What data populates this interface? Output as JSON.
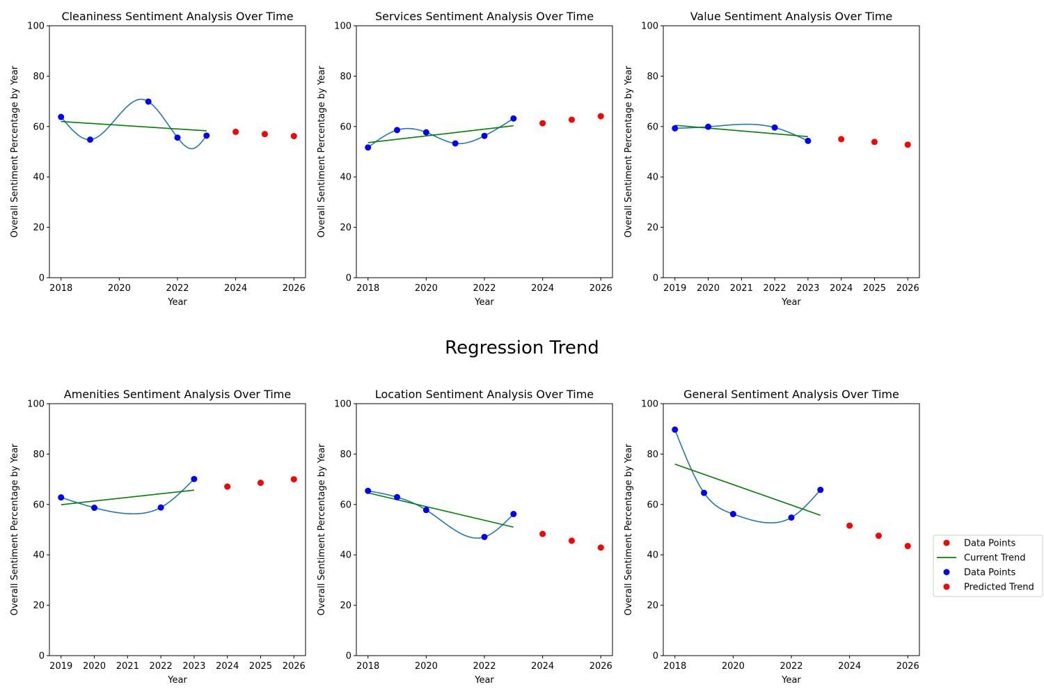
{
  "figure": {
    "suptitle": "Regression Trend",
    "legend": {
      "placement": "right",
      "entries": [
        {
          "label": "Data Points",
          "kind": "dot",
          "color": "#ff0000"
        },
        {
          "label": "Current Trend",
          "kind": "line",
          "color": "#008000"
        },
        {
          "label": "Data Points",
          "kind": "dot",
          "color": "#0000ff"
        },
        {
          "label": "Predicted Trend",
          "kind": "dot",
          "color": "#ff0000"
        }
      ]
    },
    "colors": {
      "actual": "#0000ff",
      "predicted": "#ff0000",
      "trend": "#008000",
      "smooth": "#1f77b4"
    }
  },
  "chart_data": [
    {
      "type": "scatter",
      "title": "Cleaniness Sentiment Analysis Over Time",
      "xlabel": "Year",
      "ylabel": "Overall Sentiment Percentage by Year",
      "xlim": [
        2017.6,
        2026.4
      ],
      "ylim": [
        0,
        100
      ],
      "xticks": [
        2018,
        2020,
        2022,
        2024,
        2026
      ],
      "yticks": [
        0,
        20,
        40,
        60,
        80,
        100
      ],
      "actual": {
        "x": [
          2018,
          2019,
          2021,
          2022,
          2023
        ],
        "y": [
          63.8,
          54.8,
          69.9,
          55.6,
          56.4
        ]
      },
      "smooth_peak": {
        "x": 2020.8,
        "y": 70.8
      },
      "smooth_trough": {
        "x": 2022.55,
        "y": 51.3
      },
      "trend": {
        "x": [
          2018,
          2023
        ],
        "y": [
          62.0,
          58.3
        ]
      },
      "predicted": {
        "x": [
          2024,
          2025,
          2026
        ],
        "y": [
          57.9,
          57.0,
          56.2
        ]
      }
    },
    {
      "type": "scatter",
      "title": "Services Sentiment Analysis Over Time",
      "xlabel": "Year",
      "ylabel": "Overall Sentiment Percentage by Year",
      "xlim": [
        2017.6,
        2026.4
      ],
      "ylim": [
        0,
        100
      ],
      "xticks": [
        2018,
        2020,
        2022,
        2024,
        2026
      ],
      "yticks": [
        0,
        20,
        40,
        60,
        80,
        100
      ],
      "actual": {
        "x": [
          2018,
          2019,
          2020,
          2021,
          2022,
          2023
        ],
        "y": [
          51.7,
          58.6,
          57.7,
          53.3,
          56.3,
          63.2
        ]
      },
      "trend": {
        "x": [
          2018,
          2023
        ],
        "y": [
          53.6,
          60.3
        ]
      },
      "predicted": {
        "x": [
          2024,
          2025,
          2026
        ],
        "y": [
          61.3,
          62.7,
          64.1
        ]
      }
    },
    {
      "type": "scatter",
      "title": "Value Sentiment Analysis Over Time",
      "xlabel": "Year",
      "ylabel": "Overall Sentiment Percentage by Year",
      "xlim": [
        2018.65,
        2026.35
      ],
      "ylim": [
        0,
        100
      ],
      "xticks": [
        2019,
        2020,
        2021,
        2022,
        2023,
        2024,
        2025,
        2026
      ],
      "yticks": [
        0,
        20,
        40,
        60,
        80,
        100
      ],
      "actual": {
        "x": [
          2019,
          2020,
          2022,
          2023
        ],
        "y": [
          59.3,
          59.9,
          59.6,
          54.3
        ]
      },
      "smooth_peak": {
        "x": 2021.1,
        "y": 60.9
      },
      "trend": {
        "x": [
          2019,
          2023
        ],
        "y": [
          60.5,
          56.0
        ]
      },
      "predicted": {
        "x": [
          2024,
          2025,
          2026
        ],
        "y": [
          55.0,
          53.9,
          52.8
        ]
      }
    },
    {
      "type": "scatter",
      "title": "Amenities Sentiment Analysis Over Time",
      "xlabel": "Year",
      "ylabel": "Overall Sentiment Percentage by Year",
      "xlim": [
        2018.65,
        2026.35
      ],
      "ylim": [
        0,
        100
      ],
      "xticks": [
        2019,
        2020,
        2021,
        2022,
        2023,
        2024,
        2025,
        2026
      ],
      "yticks": [
        0,
        20,
        40,
        60,
        80,
        100
      ],
      "actual": {
        "x": [
          2019,
          2020,
          2022,
          2023
        ],
        "y": [
          62.8,
          58.7,
          58.8,
          70.1
        ]
      },
      "smooth_trough": {
        "x": 2021.1,
        "y": 56.3
      },
      "trend": {
        "x": [
          2019,
          2023
        ],
        "y": [
          59.9,
          65.7
        ]
      },
      "predicted": {
        "x": [
          2024,
          2025,
          2026
        ],
        "y": [
          67.1,
          68.6,
          70.0
        ]
      }
    },
    {
      "type": "scatter",
      "title": "Location Sentiment Analysis Over Time",
      "xlabel": "Year",
      "ylabel": "Overall Sentiment Percentage by Year",
      "xlim": [
        2017.6,
        2026.4
      ],
      "ylim": [
        0,
        100
      ],
      "xticks": [
        2018,
        2020,
        2022,
        2024,
        2026
      ],
      "yticks": [
        0,
        20,
        40,
        60,
        80,
        100
      ],
      "actual": {
        "x": [
          2018,
          2019,
          2020,
          2022,
          2023
        ],
        "y": [
          65.4,
          62.9,
          57.8,
          47.1,
          56.2
        ]
      },
      "trend": {
        "x": [
          2018,
          2023
        ],
        "y": [
          64.6,
          51.0
        ]
      },
      "predicted": {
        "x": [
          2024,
          2025,
          2026
        ],
        "y": [
          48.3,
          45.6,
          42.9
        ]
      }
    },
    {
      "type": "scatter",
      "title": "General Sentiment Analysis Over Time",
      "xlabel": "Year",
      "ylabel": "Overall Sentiment Percentage by Year",
      "xlim": [
        2017.6,
        2026.4
      ],
      "ylim": [
        0,
        100
      ],
      "xticks": [
        2018,
        2020,
        2022,
        2024,
        2026
      ],
      "yticks": [
        0,
        20,
        40,
        60,
        80,
        100
      ],
      "actual": {
        "x": [
          2018,
          2019,
          2020,
          2022,
          2023
        ],
        "y": [
          89.7,
          64.6,
          56.2,
          54.8,
          65.8
        ]
      },
      "smooth_trough": {
        "x": 2021.3,
        "y": 52.7
      },
      "trend": {
        "x": [
          2018,
          2023
        ],
        "y": [
          76.0,
          55.7
        ]
      },
      "predicted": {
        "x": [
          2024,
          2025,
          2026
        ],
        "y": [
          51.6,
          47.6,
          43.5
        ]
      }
    }
  ]
}
